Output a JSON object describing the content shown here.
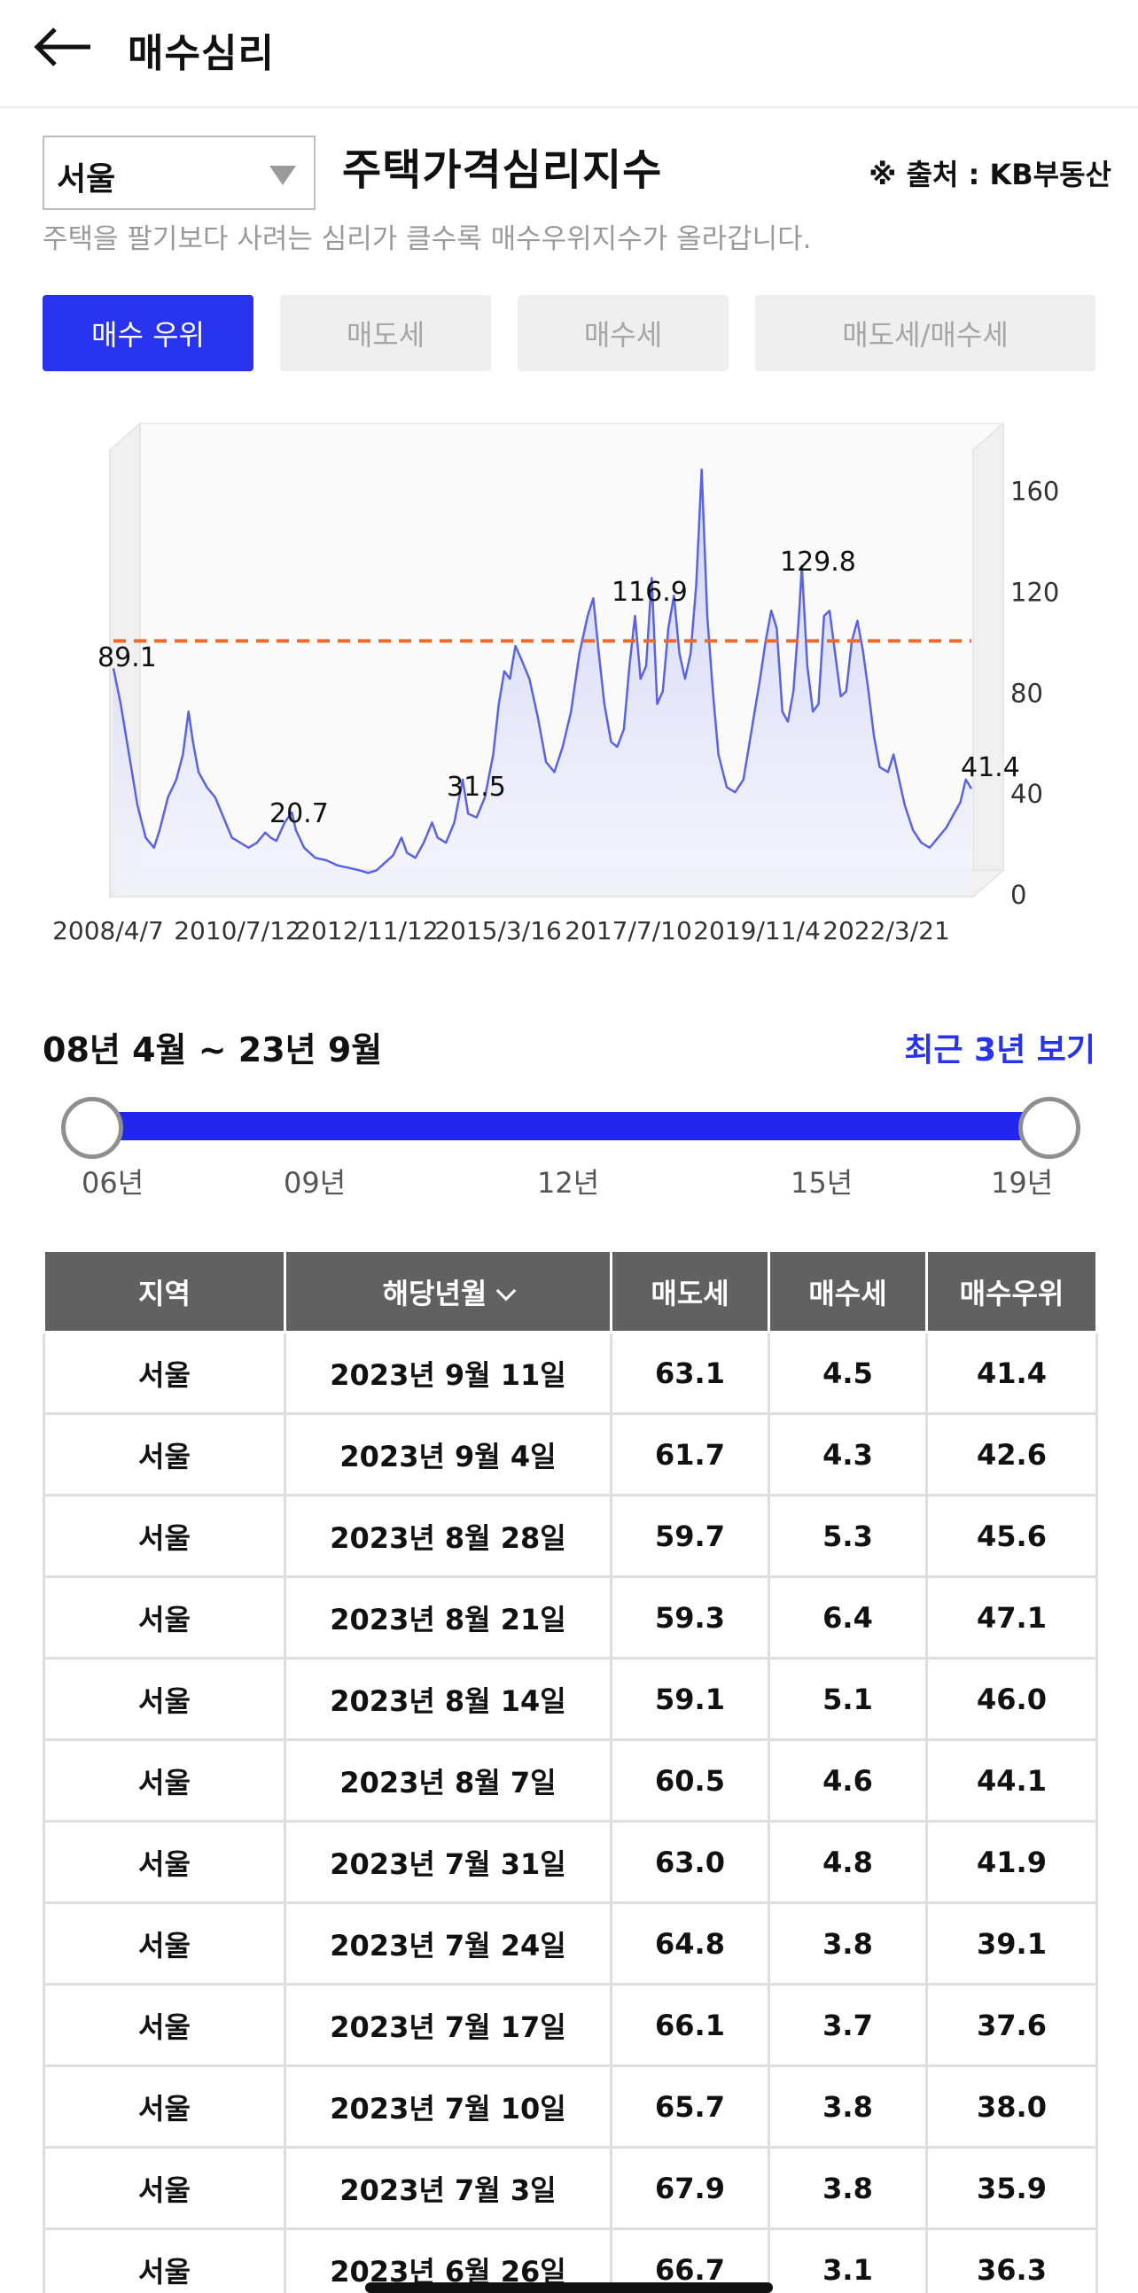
{
  "header": {
    "title": "매수심리",
    "back_icon": "arrow-left-icon"
  },
  "region_select": {
    "value": "서울",
    "icon": "triangle-down-icon"
  },
  "index_title": "주택가격심리지수",
  "source": "※ 출처 : KB부동산",
  "subtitle": "주택을 팔기보다 사려는 심리가 클수록 매수우위지수가 올라갑니다.",
  "tabs": [
    {
      "label": "매수 우위",
      "active": true
    },
    {
      "label": "매도세",
      "active": false
    },
    {
      "label": "매수세",
      "active": false
    },
    {
      "label": "매도세/매수세",
      "active": false
    }
  ],
  "chart_data": {
    "type": "area",
    "series_color": "#5a63e0",
    "reference_line": {
      "value": 100,
      "color": "#ee6a2c",
      "style": "dashed"
    },
    "ylim": [
      0,
      175
    ],
    "y_ticks": [
      "0",
      "40",
      "80",
      "120",
      "160"
    ],
    "x_tick_labels": [
      "2008/4/7",
      "2010/7/12",
      "2012/11/12",
      "2015/3/16",
      "2017/7/10",
      "2019/11/4",
      "2022/3/21"
    ],
    "data_labels": [
      "89.1",
      "20.7",
      "31.5",
      "116.9",
      "129.8",
      "41.4"
    ],
    "x_span": [
      2008.27,
      2023.7
    ],
    "points": [
      [
        2008.27,
        89.1
      ],
      [
        2008.4,
        75
      ],
      [
        2008.55,
        55
      ],
      [
        2008.7,
        35
      ],
      [
        2008.85,
        22
      ],
      [
        2009.0,
        18
      ],
      [
        2009.1,
        25
      ],
      [
        2009.25,
        38
      ],
      [
        2009.4,
        45
      ],
      [
        2009.52,
        55
      ],
      [
        2009.62,
        72
      ],
      [
        2009.7,
        60
      ],
      [
        2009.8,
        48
      ],
      [
        2009.95,
        42
      ],
      [
        2010.1,
        38
      ],
      [
        2010.25,
        30
      ],
      [
        2010.4,
        22
      ],
      [
        2010.55,
        20
      ],
      [
        2010.7,
        18
      ],
      [
        2010.85,
        20
      ],
      [
        2011.0,
        24
      ],
      [
        2011.1,
        22
      ],
      [
        2011.2,
        20.7
      ],
      [
        2011.35,
        28
      ],
      [
        2011.48,
        32
      ],
      [
        2011.55,
        25
      ],
      [
        2011.7,
        18
      ],
      [
        2011.9,
        14
      ],
      [
        2012.1,
        13
      ],
      [
        2012.3,
        11
      ],
      [
        2012.5,
        10
      ],
      [
        2012.7,
        9
      ],
      [
        2012.85,
        8
      ],
      [
        2013.0,
        9
      ],
      [
        2013.15,
        12
      ],
      [
        2013.3,
        15
      ],
      [
        2013.45,
        22
      ],
      [
        2013.55,
        16
      ],
      [
        2013.7,
        14
      ],
      [
        2013.85,
        20
      ],
      [
        2014.0,
        28
      ],
      [
        2014.1,
        22
      ],
      [
        2014.25,
        20
      ],
      [
        2014.4,
        28
      ],
      [
        2014.55,
        45
      ],
      [
        2014.65,
        31.5
      ],
      [
        2014.8,
        30
      ],
      [
        2014.95,
        38
      ],
      [
        2015.1,
        55
      ],
      [
        2015.2,
        75
      ],
      [
        2015.3,
        88
      ],
      [
        2015.4,
        85
      ],
      [
        2015.5,
        98
      ],
      [
        2015.62,
        92
      ],
      [
        2015.75,
        85
      ],
      [
        2015.9,
        70
      ],
      [
        2016.05,
        52
      ],
      [
        2016.2,
        48
      ],
      [
        2016.35,
        58
      ],
      [
        2016.5,
        72
      ],
      [
        2016.65,
        95
      ],
      [
        2016.8,
        110
      ],
      [
        2016.9,
        116.9
      ],
      [
        2017.0,
        95
      ],
      [
        2017.1,
        75
      ],
      [
        2017.22,
        60
      ],
      [
        2017.33,
        58
      ],
      [
        2017.45,
        65
      ],
      [
        2017.55,
        90
      ],
      [
        2017.65,
        110
      ],
      [
        2017.75,
        85
      ],
      [
        2017.85,
        90
      ],
      [
        2017.95,
        125
      ],
      [
        2018.05,
        75
      ],
      [
        2018.15,
        80
      ],
      [
        2018.25,
        105
      ],
      [
        2018.35,
        118
      ],
      [
        2018.45,
        95
      ],
      [
        2018.55,
        85
      ],
      [
        2018.65,
        95
      ],
      [
        2018.75,
        122
      ],
      [
        2018.85,
        168
      ],
      [
        2018.95,
        110
      ],
      [
        2019.05,
        80
      ],
      [
        2019.15,
        55
      ],
      [
        2019.3,
        42
      ],
      [
        2019.45,
        40
      ],
      [
        2019.6,
        45
      ],
      [
        2019.75,
        65
      ],
      [
        2019.9,
        85
      ],
      [
        2020.0,
        100
      ],
      [
        2020.1,
        112
      ],
      [
        2020.2,
        105
      ],
      [
        2020.3,
        72
      ],
      [
        2020.4,
        68
      ],
      [
        2020.5,
        80
      ],
      [
        2020.6,
        110
      ],
      [
        2020.65,
        129.8
      ],
      [
        2020.75,
        90
      ],
      [
        2020.85,
        72
      ],
      [
        2020.95,
        75
      ],
      [
        2021.05,
        110
      ],
      [
        2021.15,
        112
      ],
      [
        2021.25,
        95
      ],
      [
        2021.35,
        78
      ],
      [
        2021.45,
        80
      ],
      [
        2021.55,
        100
      ],
      [
        2021.65,
        108
      ],
      [
        2021.75,
        96
      ],
      [
        2021.85,
        80
      ],
      [
        2021.95,
        62
      ],
      [
        2022.05,
        50
      ],
      [
        2022.2,
        48
      ],
      [
        2022.3,
        55
      ],
      [
        2022.4,
        45
      ],
      [
        2022.5,
        35
      ],
      [
        2022.65,
        25
      ],
      [
        2022.8,
        20
      ],
      [
        2022.95,
        18
      ],
      [
        2023.1,
        22
      ],
      [
        2023.25,
        26
      ],
      [
        2023.4,
        32
      ],
      [
        2023.5,
        36
      ],
      [
        2023.6,
        45
      ],
      [
        2023.7,
        41.4
      ]
    ]
  },
  "range": {
    "label": "08년 4월 ~ 23년 9월",
    "recent_link": "최근 3년 보기"
  },
  "slider_ticks": [
    "06년",
    "09년",
    "12년",
    "15년",
    "19년"
  ],
  "table": {
    "headers": [
      "지역",
      "해당년월",
      "매도세",
      "매수세",
      "매수우위"
    ],
    "sort_icon": "chevron-down-icon",
    "rows": [
      [
        "서울",
        "2023년 9월 11일",
        "63.1",
        "4.5",
        "41.4"
      ],
      [
        "서울",
        "2023년 9월 4일",
        "61.7",
        "4.3",
        "42.6"
      ],
      [
        "서울",
        "2023년 8월 28일",
        "59.7",
        "5.3",
        "45.6"
      ],
      [
        "서울",
        "2023년 8월 21일",
        "59.3",
        "6.4",
        "47.1"
      ],
      [
        "서울",
        "2023년 8월 14일",
        "59.1",
        "5.1",
        "46.0"
      ],
      [
        "서울",
        "2023년 8월 7일",
        "60.5",
        "4.6",
        "44.1"
      ],
      [
        "서울",
        "2023년 7월 31일",
        "63.0",
        "4.8",
        "41.9"
      ],
      [
        "서울",
        "2023년 7월 24일",
        "64.8",
        "3.8",
        "39.1"
      ],
      [
        "서울",
        "2023년 7월 17일",
        "66.1",
        "3.7",
        "37.6"
      ],
      [
        "서울",
        "2023년 7월 10일",
        "65.7",
        "3.8",
        "38.0"
      ],
      [
        "서울",
        "2023년 7월 3일",
        "67.9",
        "3.8",
        "35.9"
      ],
      [
        "서울",
        "2023년 6월 26일",
        "66.7",
        "3.1",
        "36.3"
      ]
    ]
  }
}
